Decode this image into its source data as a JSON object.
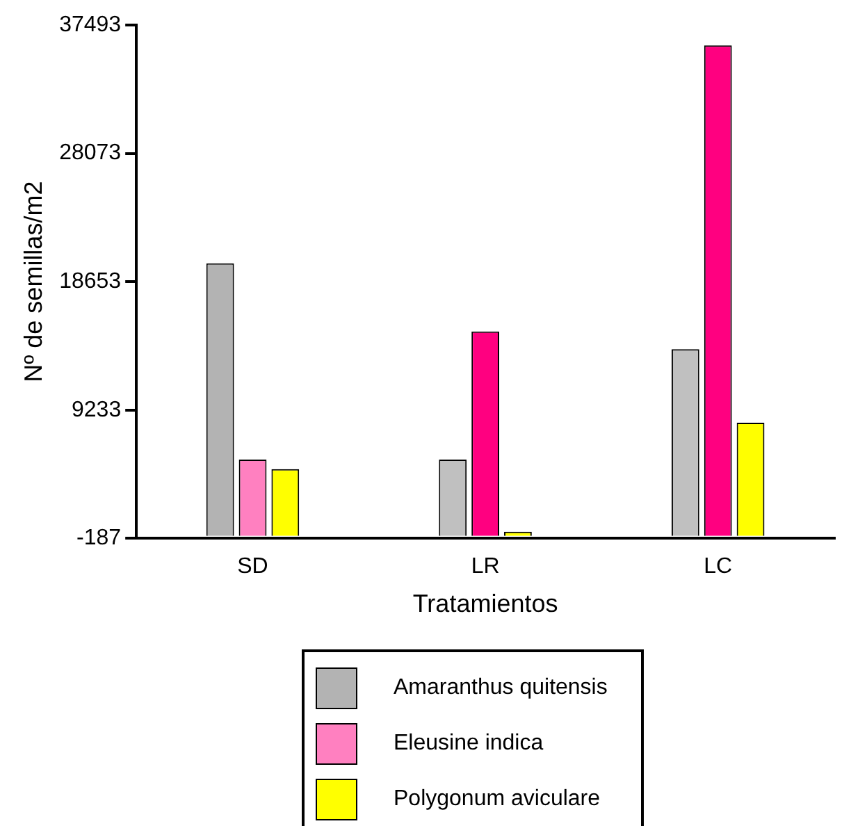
{
  "chart_data": {
    "type": "bar",
    "xlabel": "Tratamientos",
    "ylabel": "Nº de semillas/m2",
    "categories": [
      "SD",
      "LR",
      "LC"
    ],
    "series": [
      {
        "name": "Amaranthus quitensis",
        "color": "#b3b3b3",
        "colors": [
          "#b3b3b3",
          "#c0c0c0",
          "#c0c0c0"
        ],
        "values": [
          20000,
          5600,
          13700
        ]
      },
      {
        "name": "Eleusine indica",
        "color": "#ff80c0",
        "colors": [
          "#ff80c0",
          "#ff0080",
          "#ff0080"
        ],
        "values": [
          5600,
          15000,
          36000
        ]
      },
      {
        "name": "Polygonum aviculare",
        "color": "#ffff00",
        "colors": [
          "#ffff00",
          "#ffff00",
          "#ffff00"
        ],
        "values": [
          4900,
          300,
          8300
        ]
      }
    ],
    "ylim": [
      -187,
      37493
    ],
    "yticks": [
      -187,
      9233,
      18653,
      28073,
      37493
    ],
    "grid": false,
    "legend": "bottom"
  }
}
